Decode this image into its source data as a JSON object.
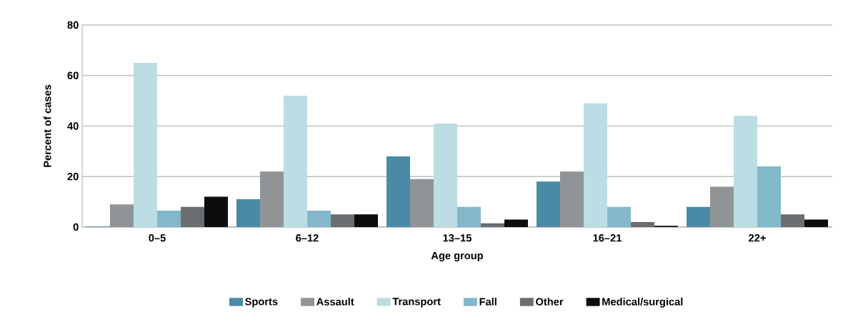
{
  "chart_data": {
    "type": "bar",
    "xlabel": "Age group",
    "ylabel": "Percent of cases",
    "categories": [
      "0–5",
      "6–12",
      "13–15",
      "16–21",
      "22+"
    ],
    "series": [
      {
        "name": "Sports",
        "color": "#4a8aa6",
        "values": [
          0.2,
          11,
          28,
          18,
          8
        ]
      },
      {
        "name": "Assault",
        "color": "#919496",
        "values": [
          9,
          22,
          19,
          22,
          16
        ]
      },
      {
        "name": "Transport",
        "color": "#bcdde4",
        "values": [
          65,
          52,
          41,
          49,
          44
        ]
      },
      {
        "name": "Fall",
        "color": "#83b8ca",
        "values": [
          6.5,
          6.5,
          8,
          8,
          24
        ]
      },
      {
        "name": "Other",
        "color": "#6b6e70",
        "values": [
          8,
          5,
          1.5,
          2,
          5
        ]
      },
      {
        "name": "Medical/surgical",
        "color": "#0d0d0d",
        "values": [
          12,
          5,
          3,
          0.5,
          3
        ]
      }
    ],
    "ylim": [
      0,
      80
    ],
    "yticks": [
      0,
      20,
      40,
      60,
      80
    ],
    "grid": "y",
    "legend": "bottom"
  }
}
